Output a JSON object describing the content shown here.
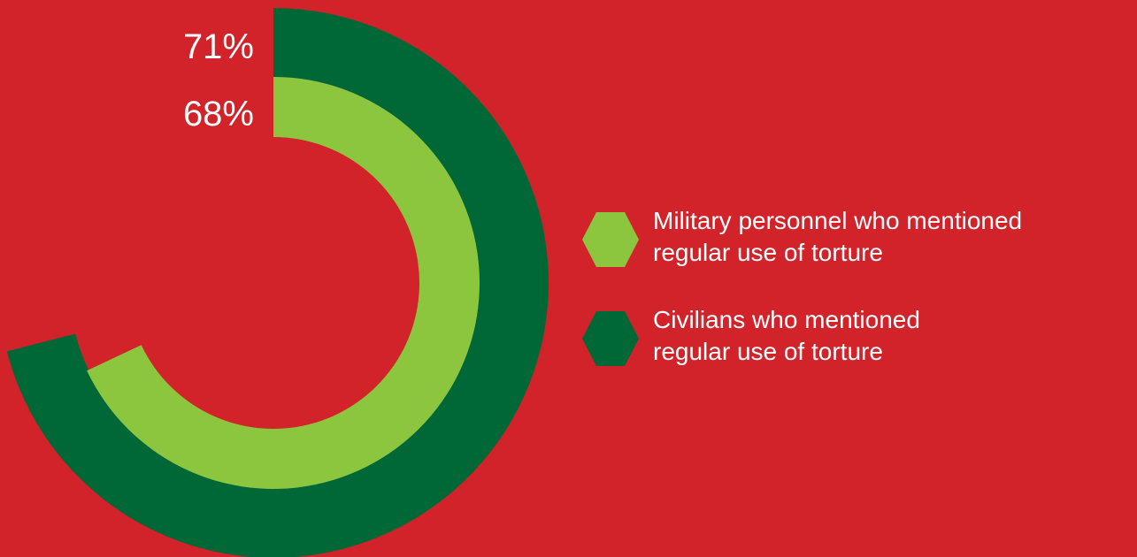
{
  "colors": {
    "background": "#d2222a",
    "inner_series": "#8cc63f",
    "outer_series": "#006837",
    "text": "#ffffff"
  },
  "chart_data": {
    "type": "radial-bar",
    "unit": "%",
    "series": [
      {
        "value": 71,
        "value_label": "71%",
        "legend_lines": [
          "Civilians who mentioned",
          "regular use of torture"
        ],
        "color": "#006837",
        "ring": "outer"
      },
      {
        "value": 68,
        "value_label": "68%",
        "legend_lines": [
          "Military personnel who mentioned",
          "regular use of torture"
        ],
        "color": "#8cc63f",
        "ring": "inner"
      }
    ],
    "legend_order": [
      1,
      0
    ],
    "legend_marker": "hexagon"
  }
}
